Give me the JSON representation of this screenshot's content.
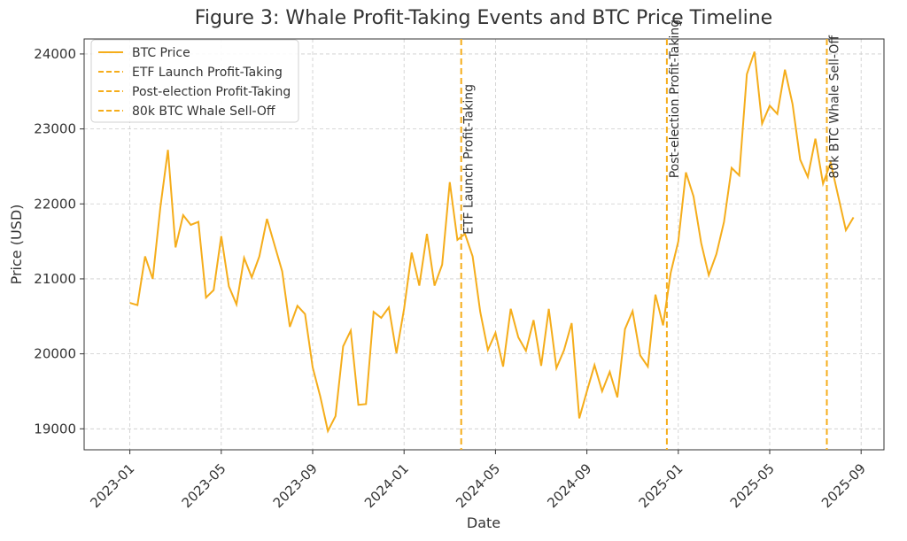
{
  "chart_data": {
    "type": "line",
    "title": "Figure 3: Whale Profit-Taking Events and BTC Price Timeline",
    "x_label": "Date",
    "y_label": "Price (USD)",
    "x": [
      "2023-01",
      "2023-01",
      "2023-01",
      "2023-02",
      "2023-02",
      "2023-02",
      "2023-03",
      "2023-03",
      "2023-03",
      "2023-04",
      "2023-04",
      "2023-04",
      "2023-05",
      "2023-05",
      "2023-05",
      "2023-06",
      "2023-06",
      "2023-06",
      "2023-07",
      "2023-07",
      "2023-07",
      "2023-08",
      "2023-08",
      "2023-08",
      "2023-09",
      "2023-09",
      "2023-09",
      "2023-10",
      "2023-10",
      "2023-10",
      "2023-11",
      "2023-11",
      "2023-11",
      "2023-12",
      "2023-12",
      "2023-12",
      "2024-01",
      "2024-01",
      "2024-01",
      "2024-02",
      "2024-02",
      "2024-02",
      "2024-03",
      "2024-03",
      "2024-03",
      "2024-04",
      "2024-04",
      "2024-04",
      "2024-05",
      "2024-05",
      "2024-05",
      "2024-06",
      "2024-06",
      "2024-06",
      "2024-07",
      "2024-07",
      "2024-07",
      "2024-08",
      "2024-08",
      "2024-08",
      "2024-09",
      "2024-09",
      "2024-09",
      "2024-10",
      "2024-10",
      "2024-10",
      "2024-11",
      "2024-11",
      "2024-11",
      "2024-12",
      "2024-12",
      "2024-12",
      "2025-01",
      "2025-01",
      "2025-01",
      "2025-02",
      "2025-02",
      "2025-02",
      "2025-03",
      "2025-03",
      "2025-03",
      "2025-04",
      "2025-04",
      "2025-04",
      "2025-05",
      "2025-05",
      "2025-05",
      "2025-06",
      "2025-06",
      "2025-06",
      "2025-07",
      "2025-07",
      "2025-07",
      "2025-08",
      "2025-08",
      "2025-08"
    ],
    "series": [
      {
        "name": "BTC Price",
        "color": "#f5ad1b",
        "values": [
          20680,
          20650,
          21300,
          21000,
          21950,
          22720,
          21420,
          21850,
          21720,
          21760,
          20750,
          20850,
          21570,
          20900,
          20660,
          21280,
          21020,
          21300,
          21800,
          21450,
          21100,
          20360,
          20640,
          20530,
          19820,
          19430,
          18970,
          19170,
          20100,
          20310,
          19320,
          19330,
          20560,
          20480,
          20620,
          20010,
          20600,
          21350,
          20910,
          21600,
          20910,
          21190,
          22290,
          21520,
          21600,
          21300,
          20560,
          20050,
          20280,
          19830,
          20600,
          20220,
          20040,
          20450,
          19840,
          20600,
          19810,
          20050,
          20410,
          19140,
          19500,
          19850,
          19500,
          19760,
          19420,
          20330,
          20570,
          19980,
          19830,
          20790,
          20380,
          21080,
          21500,
          22420,
          22100,
          21480,
          21050,
          21330,
          21760,
          22480,
          22380,
          23730,
          24030,
          23070,
          23310,
          23200,
          23790,
          23330,
          22590,
          22360,
          22870,
          22270,
          22550,
          22100,
          21650,
          21820
        ]
      }
    ],
    "events": [
      {
        "name": "ETF Launch Profit-Taking",
        "x": "2024-03",
        "color": "#f5ad1b"
      },
      {
        "name": "Post-election Profit-Taking",
        "x": "2024-12",
        "color": "#f5ad1b"
      },
      {
        "name": "80k BTC Whale Sell-Off",
        "x": "2025-07",
        "color": "#f5ad1b"
      }
    ],
    "xlim": [
      "2022-11",
      "2025-10"
    ],
    "xticks": [
      "2023-01",
      "2023-05",
      "2023-09",
      "2024-01",
      "2024-05",
      "2024-09",
      "2025-01",
      "2025-05",
      "2025-09"
    ],
    "ylim": [
      18720,
      24200
    ],
    "yticks": [
      19000,
      20000,
      21000,
      22000,
      23000,
      24000
    ],
    "grid": true,
    "legend": "upper left"
  }
}
